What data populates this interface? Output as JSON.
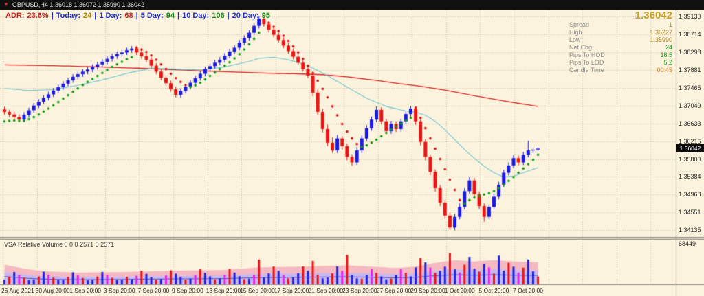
{
  "window": {
    "symbol_line": "GBPUSD,H4  1.36018 1.36072 1.35990 1.36042"
  },
  "adr_bar": {
    "separator": "|",
    "separator_color": "#2233cc",
    "items": [
      {
        "label": "ADR:",
        "value": "23.6%",
        "lcolor": "#cc2222",
        "vcolor": "#cc2222"
      },
      {
        "label": "Today:",
        "value": "24",
        "lcolor": "#2233cc",
        "vcolor": "#b08800"
      },
      {
        "label": "1 Day:",
        "value": "68",
        "lcolor": "#2233cc",
        "vcolor": "#cc2222"
      },
      {
        "label": "5 Day:",
        "value": "94",
        "lcolor": "#2233cc",
        "vcolor": "#118811"
      },
      {
        "label": "10 Day:",
        "value": "106",
        "lcolor": "#2233cc",
        "vcolor": "#118811"
      },
      {
        "label": "20 Day:",
        "value": "95",
        "lcolor": "#2233cc",
        "vcolor": "#118811"
      }
    ]
  },
  "info_panel": {
    "big_price": "1.36042",
    "rows": [
      {
        "label": "Spread",
        "value": "1",
        "color": "#b08820"
      },
      {
        "label": "High",
        "value": "1.36227",
        "color": "#b08820"
      },
      {
        "label": "Low",
        "value": "1.35990",
        "color": "#b08820"
      },
      {
        "label": "Net Chg",
        "value": "24",
        "color": "#18a018"
      },
      {
        "label": "Pips To HOD",
        "value": "18.5",
        "color": "#18a018"
      },
      {
        "label": "Pips To LOD",
        "value": "5.2",
        "color": "#18a018"
      },
      {
        "label": "Candle Time",
        "value": "00:45",
        "color": "#e07818"
      }
    ]
  },
  "price_axis": {
    "labels": [
      "1.39130",
      "1.38714",
      "1.38298",
      "1.37881",
      "1.37465",
      "1.37049",
      "1.36633",
      "1.36216",
      "1.35800",
      "1.35384",
      "1.34968",
      "1.34551",
      "1.34135"
    ],
    "current": "1.36042"
  },
  "time_axis": {
    "labels": [
      "26 Aug 2021",
      "30 Aug 20:00",
      "1 Sep 20:00",
      "3 Sep 20:00",
      "7 Sep 20:00",
      "9 Sep 20:00",
      "13 Sep 20:00",
      "15 Sep 20:00",
      "17 Sep 20:00",
      "21 Sep 20:00",
      "23 Sep 20:00",
      "27 Sep 20:00",
      "29 Sep 20:00",
      "1 Oct 20:00",
      "5 Oct 20:00",
      "7 Oct 20:00"
    ]
  },
  "volume_pane": {
    "indicator_label": "VSA Relative Volume 0 0 0 2571 0 2571",
    "scale_top": "68449",
    "vmax": 68449
  },
  "colors": {
    "bg": "#fbf3dd",
    "grid": "#ccc3a6",
    "up": "#1a1ae0",
    "down": "#e81515",
    "dot_up": "#0f9f10",
    "dot_down": "#e01010",
    "ma_slow": "#dd2222",
    "ma_fast": "#6cc6d8",
    "vol_b": "#2222dd",
    "vol_r": "#ee1212",
    "vol_m": "#e822e8",
    "vol_g": "#22aa22",
    "band_outer": "#f5b9c2",
    "band_inner": "#c9b9ef",
    "band_line": "#4858c8",
    "badge_bg": "#0c0c0c",
    "badge_fg": "#ffffff",
    "big_price": "#c8a028",
    "border": "#8f8f8f"
  },
  "chart_data": {
    "type": "candlestick",
    "title": "GBPUSD H4",
    "xlabel": "",
    "ylabel": "",
    "ylim": [
      1.3398,
      1.3929
    ],
    "y_tick_labels": [
      "1.39130",
      "1.38714",
      "1.38298",
      "1.37881",
      "1.37465",
      "1.37049",
      "1.36633",
      "1.36216",
      "1.35800",
      "1.35384",
      "1.34968",
      "1.34551",
      "1.34135"
    ],
    "time_labels": [
      "26 Aug 2021",
      "30 Aug 20:00",
      "1 Sep 20:00",
      "3 Sep 20:00",
      "7 Sep 20:00",
      "9 Sep 20:00",
      "13 Sep 20:00",
      "15 Sep 20:00",
      "17 Sep 20:00",
      "21 Sep 20:00",
      "23 Sep 20:00",
      "27 Sep 20:00",
      "29 Sep 20:00",
      "1 Oct 20:00",
      "5 Oct 20:00",
      "7 Oct 20:00"
    ],
    "ohlc": [
      [
        1.3696,
        1.3702,
        1.3684,
        1.369
      ],
      [
        1.369,
        1.3695,
        1.3678,
        1.3684
      ],
      [
        1.3684,
        1.369,
        1.3672,
        1.3678
      ],
      [
        1.3678,
        1.3684,
        1.3666,
        1.3672
      ],
      [
        1.3672,
        1.3689,
        1.3666,
        1.3683
      ],
      [
        1.3683,
        1.37,
        1.3677,
        1.3694
      ],
      [
        1.3694,
        1.3711,
        1.3688,
        1.3705
      ],
      [
        1.3705,
        1.372,
        1.3699,
        1.3714
      ],
      [
        1.3714,
        1.3729,
        1.3708,
        1.3723
      ],
      [
        1.3723,
        1.3737,
        1.3717,
        1.3731
      ],
      [
        1.3731,
        1.3746,
        1.3725,
        1.374
      ],
      [
        1.374,
        1.3754,
        1.3734,
        1.3748
      ],
      [
        1.3748,
        1.3762,
        1.3742,
        1.3756
      ],
      [
        1.3756,
        1.377,
        1.375,
        1.3764
      ],
      [
        1.3764,
        1.3778,
        1.3758,
        1.3772
      ],
      [
        1.3772,
        1.3784,
        1.3766,
        1.3778
      ],
      [
        1.3778,
        1.379,
        1.3772,
        1.3784
      ],
      [
        1.3784,
        1.3795,
        1.3778,
        1.3789
      ],
      [
        1.3789,
        1.3801,
        1.3783,
        1.3795
      ],
      [
        1.3795,
        1.3807,
        1.3789,
        1.3801
      ],
      [
        1.3801,
        1.3813,
        1.3795,
        1.3807
      ],
      [
        1.3807,
        1.382,
        1.3801,
        1.3814
      ],
      [
        1.3814,
        1.3826,
        1.3808,
        1.382
      ],
      [
        1.382,
        1.3831,
        1.3814,
        1.3825
      ],
      [
        1.3825,
        1.3835,
        1.3819,
        1.3829
      ],
      [
        1.3829,
        1.384,
        1.3823,
        1.3834
      ],
      [
        1.3834,
        1.3844,
        1.3828,
        1.3838
      ],
      [
        1.3838,
        1.3844,
        1.3823,
        1.3829
      ],
      [
        1.3829,
        1.3835,
        1.3814,
        1.382
      ],
      [
        1.382,
        1.3826,
        1.3806,
        1.3812
      ],
      [
        1.3812,
        1.3818,
        1.3792,
        1.3798
      ],
      [
        1.3798,
        1.3804,
        1.3778,
        1.3784
      ],
      [
        1.3784,
        1.379,
        1.3764,
        1.377
      ],
      [
        1.377,
        1.3776,
        1.3751,
        1.3757
      ],
      [
        1.3757,
        1.3763,
        1.3737,
        1.3743
      ],
      [
        1.3743,
        1.3749,
        1.3724,
        1.373
      ],
      [
        1.373,
        1.3745,
        1.3724,
        1.3739
      ],
      [
        1.3739,
        1.3755,
        1.3733,
        1.3749
      ],
      [
        1.3749,
        1.3764,
        1.3743,
        1.3758
      ],
      [
        1.3758,
        1.3775,
        1.3752,
        1.3769
      ],
      [
        1.3769,
        1.3785,
        1.3763,
        1.3779
      ],
      [
        1.3779,
        1.3796,
        1.3773,
        1.379
      ],
      [
        1.379,
        1.3803,
        1.3784,
        1.3797
      ],
      [
        1.3797,
        1.3811,
        1.3791,
        1.3805
      ],
      [
        1.3805,
        1.3818,
        1.3799,
        1.3812
      ],
      [
        1.3812,
        1.3827,
        1.3806,
        1.3821
      ],
      [
        1.3821,
        1.3837,
        1.3815,
        1.3831
      ],
      [
        1.3831,
        1.3846,
        1.3825,
        1.384
      ],
      [
        1.384,
        1.3858,
        1.3834,
        1.3852
      ],
      [
        1.3852,
        1.3869,
        1.3846,
        1.3863
      ],
      [
        1.3863,
        1.3881,
        1.3857,
        1.3875
      ],
      [
        1.3875,
        1.3897,
        1.3869,
        1.3891
      ],
      [
        1.3891,
        1.3913,
        1.3885,
        1.3908
      ],
      [
        1.3908,
        1.3911,
        1.3889,
        1.3895
      ],
      [
        1.3895,
        1.3901,
        1.3876,
        1.3882
      ],
      [
        1.3882,
        1.3888,
        1.3864,
        1.387
      ],
      [
        1.387,
        1.3876,
        1.3852,
        1.3858
      ],
      [
        1.3858,
        1.3864,
        1.3839,
        1.3845
      ],
      [
        1.3845,
        1.3851,
        1.3826,
        1.3832
      ],
      [
        1.3832,
        1.3838,
        1.3813,
        1.3819
      ],
      [
        1.3819,
        1.3825,
        1.3799,
        1.3805
      ],
      [
        1.3805,
        1.3811,
        1.3784,
        1.379
      ],
      [
        1.379,
        1.3796,
        1.3769,
        1.3775
      ],
      [
        1.3775,
        1.378,
        1.3727,
        1.3735
      ],
      [
        1.3735,
        1.3742,
        1.3682,
        1.369
      ],
      [
        1.369,
        1.3698,
        1.3642,
        1.365
      ],
      [
        1.365,
        1.366,
        1.361,
        1.3618
      ],
      [
        1.3618,
        1.363,
        1.3594,
        1.36
      ],
      [
        1.36,
        1.3636,
        1.3594,
        1.3628
      ],
      [
        1.3628,
        1.3634,
        1.3602,
        1.361
      ],
      [
        1.361,
        1.3616,
        1.3577,
        1.3585
      ],
      [
        1.3585,
        1.3591,
        1.3564,
        1.3572
      ],
      [
        1.3572,
        1.3608,
        1.3566,
        1.36
      ],
      [
        1.36,
        1.3635,
        1.3594,
        1.3628
      ],
      [
        1.3628,
        1.3659,
        1.3622,
        1.3652
      ],
      [
        1.3652,
        1.3679,
        1.3646,
        1.3672
      ],
      [
        1.3672,
        1.3703,
        1.3666,
        1.3695
      ],
      [
        1.3695,
        1.3701,
        1.3661,
        1.3668
      ],
      [
        1.3668,
        1.3674,
        1.3638,
        1.3645
      ],
      [
        1.3645,
        1.3669,
        1.3639,
        1.3662
      ],
      [
        1.3662,
        1.3668,
        1.3643,
        1.365
      ],
      [
        1.365,
        1.3674,
        1.3644,
        1.3668
      ],
      [
        1.3668,
        1.3691,
        1.3662,
        1.3685
      ],
      [
        1.3685,
        1.3704,
        1.3679,
        1.3698
      ],
      [
        1.3698,
        1.3702,
        1.366,
        1.3668
      ],
      [
        1.3668,
        1.3673,
        1.3612,
        1.362
      ],
      [
        1.362,
        1.3626,
        1.3577,
        1.3585
      ],
      [
        1.3585,
        1.3591,
        1.3542,
        1.355
      ],
      [
        1.355,
        1.3556,
        1.3504,
        1.3512
      ],
      [
        1.3512,
        1.3519,
        1.347,
        1.3478
      ],
      [
        1.3478,
        1.3485,
        1.344,
        1.3448
      ],
      [
        1.3448,
        1.3456,
        1.3414,
        1.342
      ],
      [
        1.342,
        1.3452,
        1.34135,
        1.3445
      ],
      [
        1.3445,
        1.3476,
        1.3439,
        1.3468
      ],
      [
        1.3468,
        1.3512,
        1.3462,
        1.3505
      ],
      [
        1.3505,
        1.3538,
        1.3499,
        1.353
      ],
      [
        1.353,
        1.3536,
        1.3491,
        1.3498
      ],
      [
        1.3498,
        1.3504,
        1.3463,
        1.347
      ],
      [
        1.347,
        1.3476,
        1.3434,
        1.3445
      ],
      [
        1.3445,
        1.3474,
        1.3439,
        1.3468
      ],
      [
        1.3468,
        1.3499,
        1.3462,
        1.3492
      ],
      [
        1.3492,
        1.3527,
        1.3486,
        1.352
      ],
      [
        1.352,
        1.3555,
        1.3514,
        1.3548
      ],
      [
        1.3548,
        1.3572,
        1.3542,
        1.3565
      ],
      [
        1.3565,
        1.3589,
        1.3559,
        1.3582
      ],
      [
        1.3582,
        1.3588,
        1.3565,
        1.3572
      ],
      [
        1.3572,
        1.3597,
        1.3566,
        1.359
      ],
      [
        1.359,
        1.36227,
        1.3584,
        1.36
      ],
      [
        1.36,
        1.3606,
        1.3594,
        1.36018
      ],
      [
        1.36018,
        1.36072,
        1.3599,
        1.36042
      ]
    ],
    "trend_dots": {
      "values": [
        1.3668,
        1.3669,
        1.367,
        1.3669,
        1.367,
        1.3673,
        1.3678,
        1.3684,
        1.3691,
        1.3698,
        1.3705,
        1.3713,
        1.3721,
        1.3729,
        1.3737,
        1.3745,
        1.3753,
        1.376,
        1.3767,
        1.3774,
        1.3781,
        1.3788,
        1.3795,
        1.3801,
        1.3807,
        1.3813,
        1.3818,
        1.384,
        1.3836,
        1.383,
        1.3822,
        1.3812,
        1.3801,
        1.379,
        1.3779,
        1.3769,
        1.376,
        1.3753,
        1.3748,
        1.3752,
        1.3758,
        1.3766,
        1.3774,
        1.3782,
        1.379,
        1.3798,
        1.3806,
        1.3815,
        1.3825,
        1.3836,
        1.3848,
        1.3861,
        1.3875,
        1.3905,
        1.3898,
        1.3889,
        1.3879,
        1.3868,
        1.3856,
        1.3843,
        1.3829,
        1.3814,
        1.3798,
        1.3781,
        1.3763,
        1.3744,
        1.3724,
        1.3703,
        1.3682,
        1.3662,
        1.3644,
        1.3628,
        1.3615,
        1.3608,
        1.3612,
        1.3618,
        1.3625,
        1.3633,
        1.3641,
        1.3649,
        1.3656,
        1.3663,
        1.367,
        1.3676,
        1.37,
        1.3676,
        1.3652,
        1.3628,
        1.3604,
        1.358,
        1.3556,
        1.3532,
        1.3508,
        1.3484,
        1.3476,
        1.3484,
        1.349,
        1.3494,
        1.3497,
        1.35,
        1.3505,
        1.3512,
        1.352,
        1.3529,
        1.3538,
        1.3548,
        1.3558,
        1.3568,
        1.3578,
        1.359
      ],
      "colors": "gggggggggggggggggggggggggggrrrrrrrrrrrgggggggggggggggrrrrrrrrrrrrrrrrrrrrgggggggggggrrrrrrrrrrgggggggggggggggg"
    },
    "ma_slow_anchors": [
      [
        0,
        1.38
      ],
      [
        10,
        1.3798
      ],
      [
        20,
        1.3795
      ],
      [
        30,
        1.3791
      ],
      [
        40,
        1.3786
      ],
      [
        50,
        1.3782
      ],
      [
        55,
        1.378
      ],
      [
        60,
        1.3779
      ],
      [
        65,
        1.3777
      ],
      [
        70,
        1.3772
      ],
      [
        75,
        1.3765
      ],
      [
        80,
        1.3757
      ],
      [
        85,
        1.375
      ],
      [
        90,
        1.3741
      ],
      [
        95,
        1.373
      ],
      [
        100,
        1.372
      ],
      [
        105,
        1.371
      ],
      [
        109,
        1.3703
      ]
    ],
    "ma_fast_anchors": [
      [
        0,
        1.3745
      ],
      [
        5,
        1.374
      ],
      [
        10,
        1.3742
      ],
      [
        15,
        1.3752
      ],
      [
        20,
        1.3765
      ],
      [
        25,
        1.378
      ],
      [
        30,
        1.3792
      ],
      [
        35,
        1.379
      ],
      [
        40,
        1.3788
      ],
      [
        45,
        1.3795
      ],
      [
        50,
        1.3808
      ],
      [
        52,
        1.3815
      ],
      [
        55,
        1.3818
      ],
      [
        58,
        1.3812
      ],
      [
        62,
        1.3798
      ],
      [
        66,
        1.3775
      ],
      [
        70,
        1.3748
      ],
      [
        74,
        1.3722
      ],
      [
        78,
        1.3703
      ],
      [
        82,
        1.3692
      ],
      [
        84,
        1.369
      ],
      [
        86,
        1.3682
      ],
      [
        88,
        1.3668
      ],
      [
        90,
        1.3648
      ],
      [
        92,
        1.3625
      ],
      [
        94,
        1.3602
      ],
      [
        96,
        1.3582
      ],
      [
        98,
        1.3563
      ],
      [
        100,
        1.3548
      ],
      [
        102,
        1.3538
      ],
      [
        104,
        1.354
      ],
      [
        106,
        1.3548
      ],
      [
        108,
        1.3556
      ],
      [
        109,
        1.356
      ]
    ],
    "volume": {
      "values": [
        7200,
        11700,
        18900,
        14400,
        9900,
        6300,
        7600,
        12100,
        19400,
        14800,
        10200,
        6600,
        7000,
        11400,
        18500,
        14100,
        9700,
        6100,
        7400,
        11900,
        19100,
        14600,
        10000,
        6400,
        7100,
        11600,
        8000,
        13000,
        21000,
        16000,
        11000,
        7000,
        8200,
        13400,
        21500,
        16400,
        11300,
        7200,
        8800,
        14300,
        23100,
        17600,
        12100,
        7700,
        9000,
        14700,
        23600,
        18000,
        12400,
        7900,
        8800,
        14300,
        38000,
        10400,
        16900,
        27300,
        20800,
        14300,
        9100,
        10400,
        16900,
        27300,
        20800,
        36000,
        14300,
        9100,
        10400,
        16900,
        27300,
        20800,
        45000,
        14300,
        9100,
        8800,
        14300,
        23100,
        17600,
        12100,
        7700,
        8800,
        14300,
        23100,
        17600,
        12100,
        26000,
        40000,
        33600,
        25600,
        17600,
        20800,
        27000,
        48000,
        23000,
        18000,
        30000,
        42000,
        24000,
        19500,
        31500,
        26000,
        16500,
        44000,
        21000,
        33000,
        27000,
        18000,
        25500,
        38000,
        20000,
        12000
      ],
      "colors": "brbmrbbrbmrbbrbmrbbrbmrbbrbmrbbrbmrbbrbmrbbrbmrbbrbmrbbrbmrbbrbrrbbrbmrbbrbmrbbrbmrbbrbmrbbrbmrbbrbmrbbrbmrbbr",
      "band_anchors": [
        [
          0,
          30000
        ],
        [
          4,
          24000
        ],
        [
          8,
          20000
        ],
        [
          15,
          18000
        ],
        [
          25,
          19000
        ],
        [
          35,
          21000
        ],
        [
          45,
          22000
        ],
        [
          52,
          26000
        ],
        [
          60,
          27000
        ],
        [
          70,
          29000
        ],
        [
          80,
          25000
        ],
        [
          84,
          27000
        ],
        [
          88,
          33000
        ],
        [
          92,
          37000
        ],
        [
          96,
          35000
        ],
        [
          100,
          37000
        ],
        [
          104,
          35000
        ],
        [
          109,
          34000
        ]
      ]
    }
  }
}
